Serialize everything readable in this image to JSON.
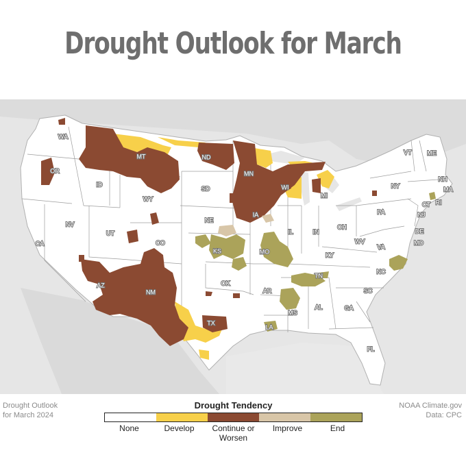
{
  "title": "Drought Outlook for March",
  "footer_left": {
    "line1": "Drought Outlook",
    "line2": "for March 2024"
  },
  "footer_right": {
    "line1": "NOAA Climate.gov",
    "line2": "Data: CPC"
  },
  "legend": {
    "title": "Drought Tendency",
    "items": [
      {
        "label": "None",
        "color": "#ffffff"
      },
      {
        "label": "Develop",
        "color": "#f7d04a"
      },
      {
        "label": "Continue or Worsen",
        "color": "#8b4a32"
      },
      {
        "label": "Improve",
        "color": "#d8c6a8"
      },
      {
        "label": "End",
        "color": "#aba35a"
      }
    ]
  },
  "states": [
    "WA",
    "OR",
    "CA",
    "ID",
    "NV",
    "MT",
    "WY",
    "UT",
    "AZ",
    "CO",
    "NM",
    "ND",
    "SD",
    "NE",
    "KS",
    "OK",
    "TX",
    "MN",
    "IA",
    "MO",
    "AR",
    "LA",
    "WI",
    "IL",
    "MS",
    "MI",
    "IN",
    "KY",
    "TN",
    "AL",
    "OH",
    "WV",
    "GA",
    "FL",
    "PA",
    "VA",
    "NC",
    "SC",
    "NY",
    "VT",
    "ME",
    "NH",
    "MA",
    "CT",
    "RI",
    "NJ",
    "DE",
    "MD"
  ]
}
